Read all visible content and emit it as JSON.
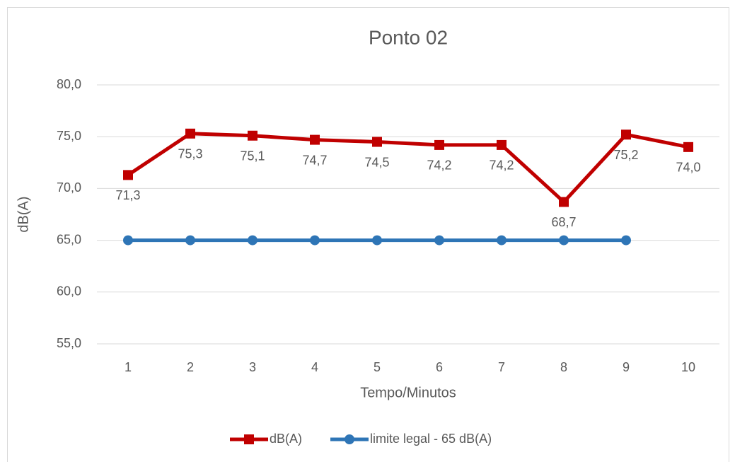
{
  "chart_data": {
    "type": "line",
    "title": "Ponto 02",
    "x_label": "Tempo/Minutos",
    "y_label": "dB(A)",
    "categories": [
      "1",
      "2",
      "3",
      "4",
      "5",
      "6",
      "7",
      "8",
      "9",
      "10"
    ],
    "series": [
      {
        "name": "dB(A)",
        "color": "#c00000",
        "marker": "square",
        "values": [
          71.3,
          75.3,
          75.1,
          74.7,
          74.5,
          74.2,
          74.2,
          68.7,
          75.2,
          74.0
        ],
        "value_labels": [
          "71,3",
          "75,3",
          "75,1",
          "74,7",
          "74,5",
          "74,2",
          "74,2",
          "68,7",
          "75,2",
          "74,0"
        ]
      },
      {
        "name": "limite legal - 65 dB(A)",
        "color": "#2e75b6",
        "marker": "circle",
        "values": [
          65,
          65,
          65,
          65,
          65,
          65,
          65,
          65,
          65,
          null
        ]
      }
    ],
    "ylim": [
      55,
      80
    ],
    "yticks": [
      {
        "value": 55,
        "label": "55,0"
      },
      {
        "value": 60,
        "label": "60,0"
      },
      {
        "value": 65,
        "label": "65,0"
      },
      {
        "value": 70,
        "label": "70,0"
      },
      {
        "value": 75,
        "label": "75,0"
      },
      {
        "value": 80,
        "label": "80,0"
      }
    ],
    "grid": true,
    "legend": "bottom"
  }
}
